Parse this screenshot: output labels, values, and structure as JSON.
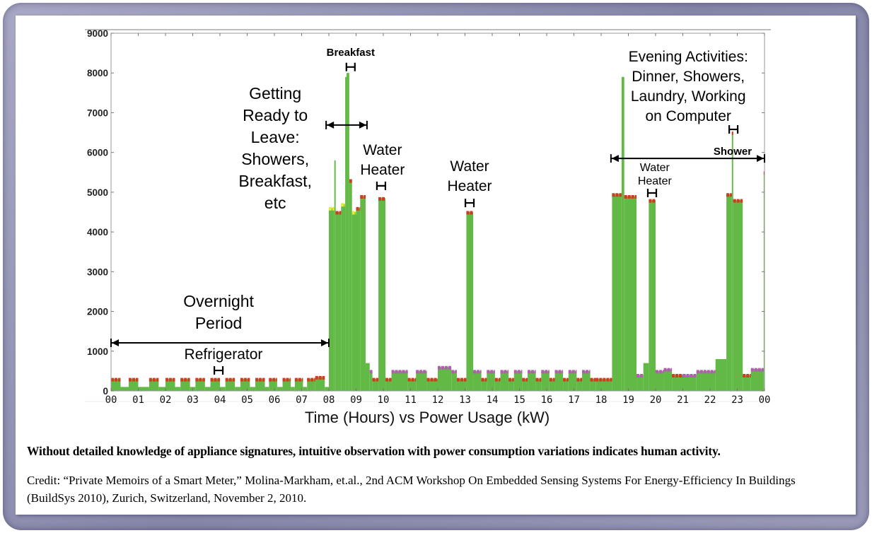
{
  "chart_data": {
    "type": "area",
    "title": "",
    "xlabel": "Time (Hours) vs Power Usage (kW)",
    "ylabel": "",
    "xlim": [
      0,
      24
    ],
    "ylim": [
      0,
      9000
    ],
    "grid": false,
    "y_ticks": [
      "0",
      "1000",
      "2000",
      "3000",
      "4000",
      "5000",
      "6000",
      "7000",
      "8000",
      "9000"
    ],
    "x_ticks": [
      "00",
      "01",
      "02",
      "03",
      "04",
      "05",
      "06",
      "07",
      "08",
      "09",
      "10",
      "11",
      "12",
      "13",
      "14",
      "15",
      "16",
      "17",
      "18",
      "19",
      "20",
      "21",
      "22",
      "23",
      "00"
    ],
    "colors": {
      "fill": "#63b946",
      "marker_red": "#d23a22",
      "marker_magenta": "#b45cb4",
      "marker_yellow": "#e4ea3a"
    },
    "segments": [
      [
        0.0,
        0.35,
        300,
        "r"
      ],
      [
        0.35,
        0.65,
        100,
        ""
      ],
      [
        0.65,
        1.0,
        300,
        "r"
      ],
      [
        1.0,
        1.4,
        100,
        ""
      ],
      [
        1.4,
        1.75,
        300,
        "r"
      ],
      [
        1.75,
        2.0,
        100,
        ""
      ],
      [
        2.0,
        2.35,
        300,
        "r"
      ],
      [
        2.35,
        2.55,
        100,
        ""
      ],
      [
        2.55,
        2.9,
        300,
        "r"
      ],
      [
        2.9,
        3.1,
        100,
        ""
      ],
      [
        3.1,
        3.45,
        300,
        "r"
      ],
      [
        3.45,
        3.65,
        100,
        ""
      ],
      [
        3.65,
        4.0,
        300,
        "r"
      ],
      [
        4.0,
        4.2,
        100,
        ""
      ],
      [
        4.2,
        4.55,
        300,
        "r"
      ],
      [
        4.55,
        4.75,
        100,
        ""
      ],
      [
        4.75,
        5.1,
        300,
        "r"
      ],
      [
        5.1,
        5.3,
        100,
        ""
      ],
      [
        5.3,
        5.65,
        300,
        "r"
      ],
      [
        5.65,
        5.8,
        100,
        ""
      ],
      [
        5.8,
        6.1,
        300,
        "r"
      ],
      [
        6.1,
        6.3,
        100,
        ""
      ],
      [
        6.3,
        6.6,
        300,
        "r"
      ],
      [
        6.6,
        6.75,
        100,
        ""
      ],
      [
        6.75,
        7.05,
        300,
        "r"
      ],
      [
        7.05,
        7.2,
        100,
        ""
      ],
      [
        7.2,
        7.5,
        300,
        "r"
      ],
      [
        7.5,
        7.85,
        350,
        "r"
      ],
      [
        7.85,
        8.0,
        100,
        ""
      ],
      [
        8.0,
        8.2,
        4600,
        "y"
      ],
      [
        8.2,
        8.25,
        5800,
        ""
      ],
      [
        8.25,
        8.45,
        4500,
        "r"
      ],
      [
        8.45,
        8.6,
        4700,
        "y"
      ],
      [
        8.6,
        8.65,
        7900,
        ""
      ],
      [
        8.65,
        8.75,
        8000,
        ""
      ],
      [
        8.75,
        8.85,
        5300,
        "r"
      ],
      [
        8.85,
        9.0,
        4500,
        "y"
      ],
      [
        9.0,
        9.15,
        4600,
        "r"
      ],
      [
        9.15,
        9.35,
        4900,
        "r"
      ],
      [
        9.35,
        9.5,
        700,
        ""
      ],
      [
        9.5,
        9.6,
        500,
        "m"
      ],
      [
        9.6,
        9.82,
        300,
        "r"
      ],
      [
        9.82,
        10.08,
        4850,
        "r"
      ],
      [
        10.08,
        10.3,
        300,
        "r"
      ],
      [
        10.3,
        10.9,
        500,
        "m"
      ],
      [
        10.9,
        11.2,
        300,
        "r"
      ],
      [
        11.2,
        11.6,
        500,
        "m"
      ],
      [
        11.6,
        12.0,
        300,
        "r"
      ],
      [
        12.0,
        12.5,
        600,
        "m"
      ],
      [
        12.5,
        12.7,
        500,
        "m"
      ],
      [
        12.7,
        13.05,
        300,
        "r"
      ],
      [
        13.05,
        13.3,
        4500,
        "r"
      ],
      [
        13.3,
        13.6,
        500,
        "m"
      ],
      [
        13.6,
        13.8,
        300,
        "r"
      ],
      [
        13.8,
        14.1,
        500,
        "m"
      ],
      [
        14.1,
        14.3,
        300,
        "r"
      ],
      [
        14.3,
        14.6,
        500,
        "m"
      ],
      [
        14.6,
        14.8,
        300,
        "r"
      ],
      [
        14.8,
        15.1,
        500,
        "m"
      ],
      [
        15.1,
        15.3,
        300,
        "r"
      ],
      [
        15.3,
        15.6,
        500,
        "m"
      ],
      [
        15.6,
        15.8,
        300,
        "r"
      ],
      [
        15.8,
        16.1,
        500,
        "m"
      ],
      [
        16.1,
        16.3,
        300,
        "r"
      ],
      [
        16.3,
        16.6,
        500,
        "m"
      ],
      [
        16.6,
        16.8,
        300,
        "r"
      ],
      [
        16.8,
        17.1,
        500,
        "m"
      ],
      [
        17.1,
        17.3,
        300,
        "r"
      ],
      [
        17.3,
        17.6,
        500,
        "m"
      ],
      [
        17.6,
        17.8,
        300,
        "r"
      ],
      [
        17.8,
        18.4,
        300,
        "r"
      ],
      [
        18.4,
        18.75,
        4950,
        "r"
      ],
      [
        18.75,
        18.85,
        7900,
        ""
      ],
      [
        18.85,
        19.3,
        4900,
        "r"
      ],
      [
        19.3,
        19.55,
        400,
        "m"
      ],
      [
        19.55,
        19.75,
        700,
        ""
      ],
      [
        19.75,
        20.0,
        4800,
        "r"
      ],
      [
        20.0,
        20.3,
        500,
        "m"
      ],
      [
        20.3,
        20.6,
        550,
        "m"
      ],
      [
        20.6,
        21.0,
        400,
        "r"
      ],
      [
        21.0,
        21.5,
        400,
        "m"
      ],
      [
        21.5,
        22.2,
        500,
        "m"
      ],
      [
        22.2,
        22.6,
        800,
        ""
      ],
      [
        22.6,
        22.8,
        4950,
        "r"
      ],
      [
        22.8,
        22.85,
        6500,
        "r"
      ],
      [
        22.85,
        23.2,
        4800,
        "r"
      ],
      [
        23.2,
        23.5,
        400,
        "r"
      ],
      [
        23.5,
        23.97,
        550,
        "m"
      ],
      [
        23.97,
        24.0,
        5500,
        "r"
      ]
    ],
    "annotations": [
      {
        "lines": [
          "Breakfast"
        ],
        "x": 8.8,
        "y": 8430,
        "bold": true,
        "size": "small"
      },
      {
        "lines": [
          "Getting",
          "Ready to",
          "Leave:",
          "Showers,",
          "Breakfast,",
          "etc"
        ],
        "x": 6.03,
        "y": 7346,
        "bold": false,
        "size": "large"
      },
      {
        "lines": [
          "Water",
          "Heater"
        ],
        "x": 9.97,
        "y": 5940,
        "bold": false,
        "size": "medium"
      },
      {
        "lines": [
          "Water",
          "Heater"
        ],
        "x": 13.17,
        "y": 5530,
        "bold": false,
        "size": "medium"
      },
      {
        "lines": [
          "Evening Activities:",
          "Dinner, Showers,",
          "Laundry, Working",
          "on Computer"
        ],
        "x": 21.2,
        "y": 8290,
        "bold": false,
        "size": "medium"
      },
      {
        "lines": [
          "Water",
          "Heater"
        ],
        "x": 19.97,
        "y": 5530,
        "bold": false,
        "size": "small"
      },
      {
        "lines": [
          "Shower"
        ],
        "x": 22.83,
        "y": 5940,
        "bold": true,
        "size": "small"
      },
      {
        "lines": [
          "Overnight",
          "Period"
        ],
        "x": 3.95,
        "y": 2117,
        "bold": false,
        "size": "large"
      },
      {
        "lines": [
          "Refrigerator"
        ],
        "x": 4.13,
        "y": 800,
        "bold": false,
        "size": "medium"
      }
    ],
    "ranges": [
      {
        "name": "overnight-period",
        "from": 0,
        "to": 8,
        "y": 1210
      },
      {
        "name": "getting-ready",
        "from": 7.9,
        "to": 9.4,
        "y": 6690
      },
      {
        "name": "evening-activities",
        "from": 18.36,
        "to": 24,
        "y": 5850
      }
    ],
    "event_markers": [
      {
        "x": 8.8,
        "y": 8150
      },
      {
        "x": 9.92,
        "y": 5160
      },
      {
        "x": 13.17,
        "y": 4730
      },
      {
        "x": 19.87,
        "y": 4980
      },
      {
        "x": 22.86,
        "y": 6580
      },
      {
        "x": 3.95,
        "y": 515
      }
    ]
  },
  "caption": {
    "summary": "Without detailed knowledge of appliance signatures, intuitive observation with power consumption variations indicates human activity.",
    "credit": "Credit: “Private Memoirs of a Smart Meter,” Molina-Markham, et.al., 2nd ACM Workshop On Embedded Sensing Systems For Energy-Efficiency In Buildings (BuildSys 2010), Zurich, Switzerland, November 2, 2010."
  }
}
